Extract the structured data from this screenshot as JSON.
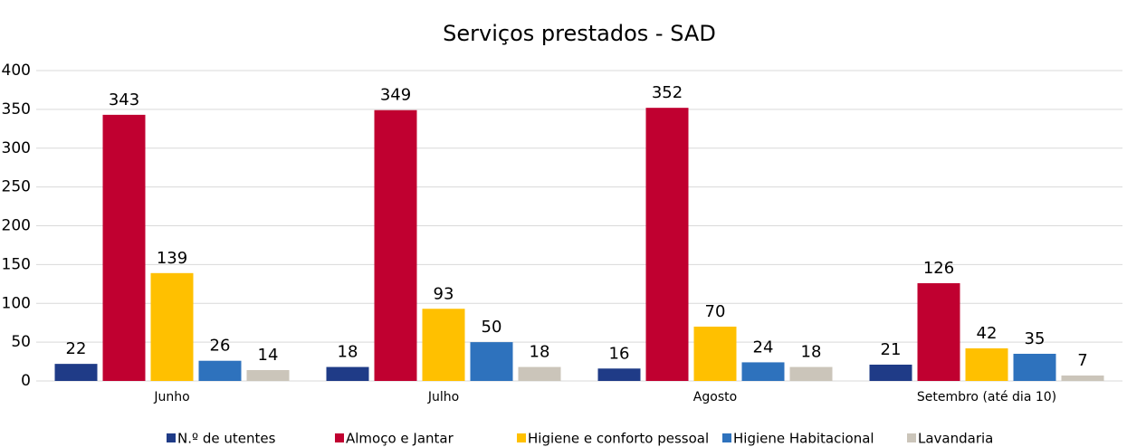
{
  "chart_data": {
    "type": "bar",
    "title": "Serviços prestados - SAD",
    "categories": [
      "Junho",
      "Julho",
      "Agosto",
      "Setembro (até dia 10)"
    ],
    "series": [
      {
        "name": "N.º de utentes",
        "color": "#1f3b87",
        "values": [
          22,
          18,
          16,
          21
        ]
      },
      {
        "name": "Almoço e Jantar",
        "color": "#c00030",
        "values": [
          343,
          349,
          352,
          126
        ]
      },
      {
        "name": "Higiene e conforto pessoal",
        "color": "#ffc000",
        "values": [
          139,
          93,
          70,
          42
        ]
      },
      {
        "name": "Higiene Habitacional",
        "color": "#2e72bd",
        "values": [
          26,
          50,
          24,
          35
        ]
      },
      {
        "name": "Lavandaria",
        "color": "#cbc5ba",
        "values": [
          14,
          18,
          18,
          7
        ]
      }
    ],
    "ylim": [
      0,
      400
    ],
    "yticks": [
      0,
      50,
      100,
      150,
      200,
      250,
      300,
      350,
      400
    ],
    "grid": true,
    "legend": "bottom"
  }
}
